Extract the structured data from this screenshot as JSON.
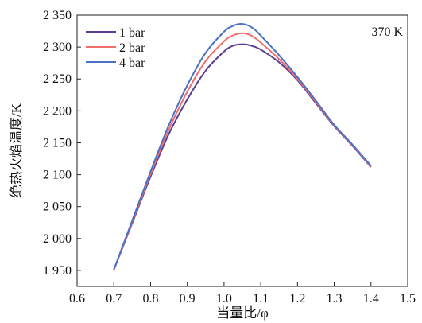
{
  "chart_data": {
    "type": "line",
    "xlabel": "当量比/φ",
    "ylabel": "绝热火焰温度/K",
    "annotation": "370 K",
    "xlim": [
      0.6,
      1.5
    ],
    "ylim": [
      1925,
      2350
    ],
    "xticks": [
      0.6,
      0.7,
      0.8,
      0.9,
      1.0,
      1.1,
      1.2,
      1.3,
      1.4,
      1.5
    ],
    "xtick_labels": [
      "0.6",
      "0.7",
      "0.8",
      "0.9",
      "1.0",
      "1.1",
      "1.2",
      "1.3",
      "1.4",
      "1.5"
    ],
    "yticks": [
      1950,
      2000,
      2050,
      2100,
      2150,
      2200,
      2250,
      2300,
      2350
    ],
    "ytick_labels": [
      "1 950",
      "2 000",
      "2 050",
      "2 100",
      "2 150",
      "2 200",
      "2 250",
      "2 300",
      "2 350"
    ],
    "grid": false,
    "legend_position": "top-left",
    "x": [
      0.7,
      0.75,
      0.8,
      0.85,
      0.9,
      0.95,
      1.0,
      1.02,
      1.04,
      1.06,
      1.08,
      1.1,
      1.15,
      1.2,
      1.25,
      1.3,
      1.35,
      1.4
    ],
    "series": [
      {
        "name": "1 bar",
        "color": "#5b3d96",
        "values": [
          1951,
          2024,
          2097,
          2164,
          2218,
          2263,
          2293,
          2301,
          2304,
          2304,
          2301,
          2296,
          2276,
          2248,
          2212,
          2176,
          2145,
          2112
        ]
      },
      {
        "name": "2 bar",
        "color": "#ef6f6c",
        "values": [
          1951,
          2026,
          2101,
          2171,
          2230,
          2278,
          2309,
          2317,
          2321,
          2321,
          2316,
          2307,
          2281,
          2250,
          2214,
          2177,
          2146,
          2113
        ]
      },
      {
        "name": "4 bar",
        "color": "#4a72c4",
        "values": [
          1951,
          2028,
          2105,
          2178,
          2240,
          2291,
          2324,
          2332,
          2336,
          2335,
          2329,
          2318,
          2287,
          2253,
          2216,
          2178,
          2147,
          2114
        ]
      }
    ]
  }
}
